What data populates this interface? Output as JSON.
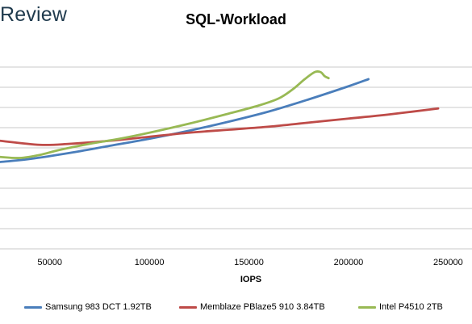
{
  "brand": {
    "text": "Review"
  },
  "chart_data": {
    "type": "line",
    "title": "SQL-Workload",
    "xlabel": "IOPS",
    "ylabel": "",
    "xlim": [
      25000,
      262000
    ],
    "ylim": [
      0,
      10
    ],
    "x_ticks": [
      50000,
      100000,
      150000,
      200000,
      250000
    ],
    "x_tick_labels": [
      "50000",
      "100000",
      "150000",
      "200000",
      "250000"
    ],
    "y_gridlines": [
      0,
      1,
      2,
      3,
      4,
      5,
      6,
      7,
      8,
      9
    ],
    "grid": true,
    "legend_position": "bottom",
    "series": [
      {
        "name": "Samsung 983 DCT 1.92TB",
        "color": "#4a7ebb",
        "x": [
          25000,
          40000,
          60000,
          80000,
          100000,
          120000,
          140000,
          160000,
          180000,
          200000,
          210000
        ],
        "y": [
          4.3,
          4.45,
          4.75,
          5.1,
          5.45,
          5.85,
          6.3,
          6.8,
          7.4,
          8.05,
          8.4
        ]
      },
      {
        "name": "Memblaze PBlaze5 910 3.84TB",
        "color": "#be4b48",
        "x": [
          25000,
          45000,
          60000,
          80000,
          100000,
          120000,
          140000,
          160000,
          180000,
          200000,
          220000,
          245000
        ],
        "y": [
          5.35,
          5.15,
          5.2,
          5.35,
          5.55,
          5.75,
          5.9,
          6.05,
          6.25,
          6.45,
          6.65,
          6.95
        ]
      },
      {
        "name": "Intel P4510 2TB",
        "color": "#98b954",
        "x": [
          25000,
          35000,
          45000,
          55000,
          70000,
          85000,
          100000,
          120000,
          140000,
          155000,
          165000,
          172000,
          178000,
          183000,
          186000,
          188000,
          190000
        ],
        "y": [
          4.55,
          4.5,
          4.65,
          4.9,
          5.2,
          5.45,
          5.75,
          6.2,
          6.7,
          7.1,
          7.45,
          7.9,
          8.4,
          8.75,
          8.75,
          8.55,
          8.45
        ]
      }
    ]
  }
}
